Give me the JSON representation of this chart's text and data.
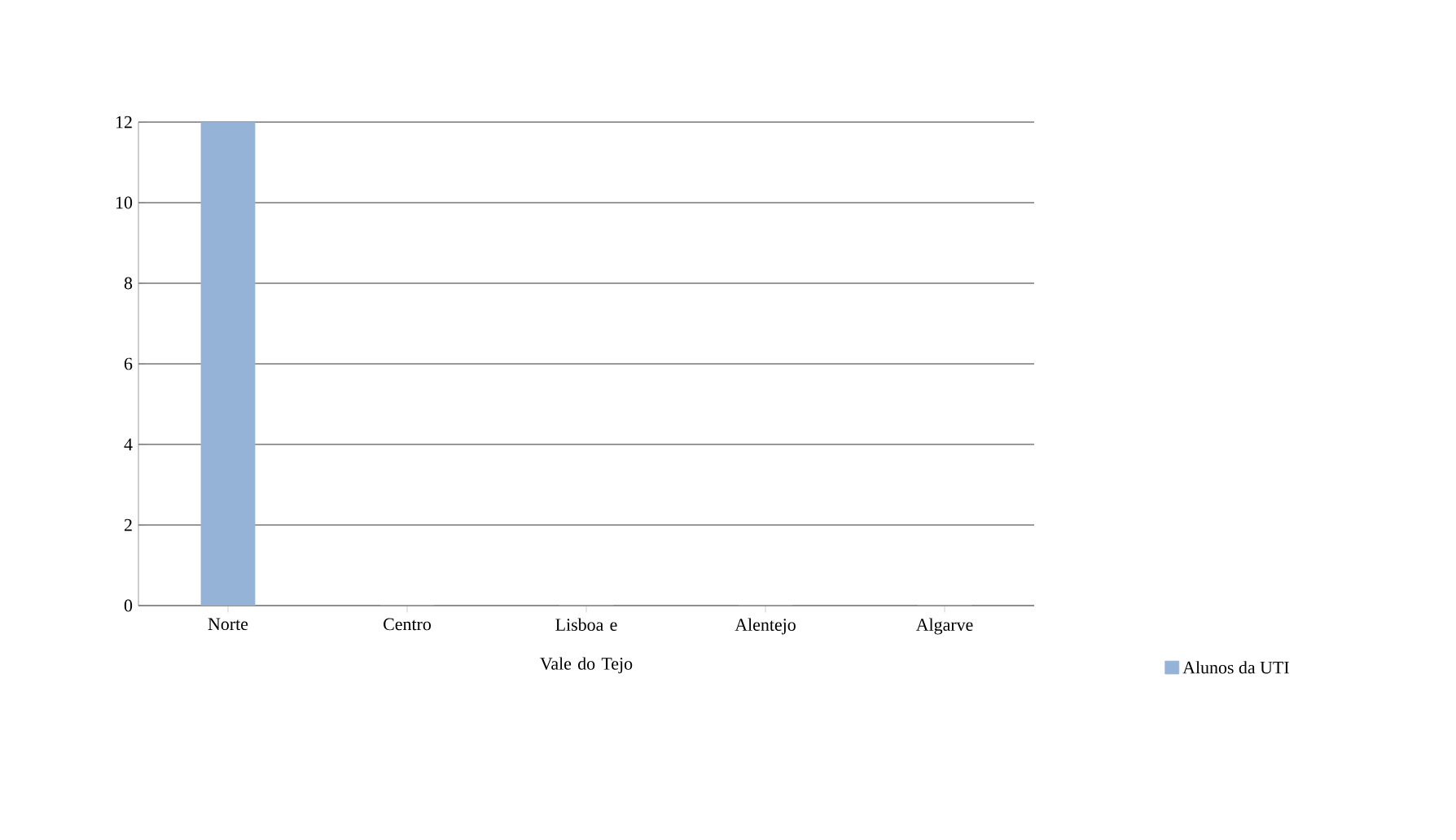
{
  "chart_data": {
    "type": "bar",
    "categories": [
      "Norte",
      "Centro",
      "Lisboa e Vale do Tejo",
      "Alentejo",
      "Algarve"
    ],
    "series": [
      {
        "name": "Alunos da UTI",
        "color": "#95b3d7",
        "values": [
          12,
          0,
          0,
          0,
          0
        ]
      }
    ],
    "ylim": [
      0,
      12
    ],
    "yticks": [
      0,
      2,
      4,
      6,
      8,
      10,
      12
    ],
    "grid": "y",
    "legend": "right"
  }
}
